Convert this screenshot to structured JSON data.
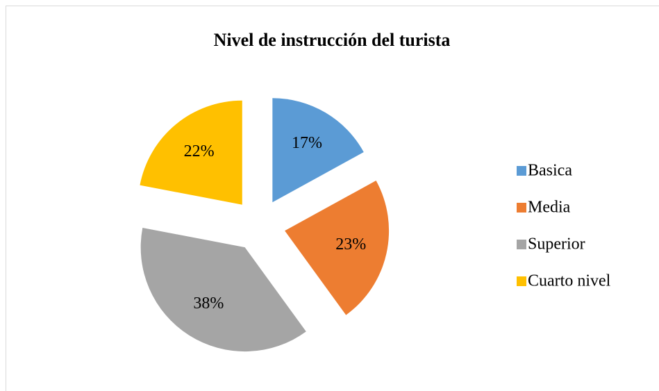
{
  "chart_data": {
    "type": "pie",
    "title": "Nivel de instrucción del turista",
    "categories": [
      "Basica",
      "Media",
      "Superior",
      "Cuarto nivel"
    ],
    "values": [
      17,
      23,
      38,
      22
    ],
    "value_labels": [
      "17%",
      "23%",
      "38%",
      "22%"
    ],
    "colors": [
      "#5b9bd5",
      "#ed7d31",
      "#a5a5a5",
      "#ffc000"
    ],
    "exploded": true,
    "legend": "right"
  }
}
